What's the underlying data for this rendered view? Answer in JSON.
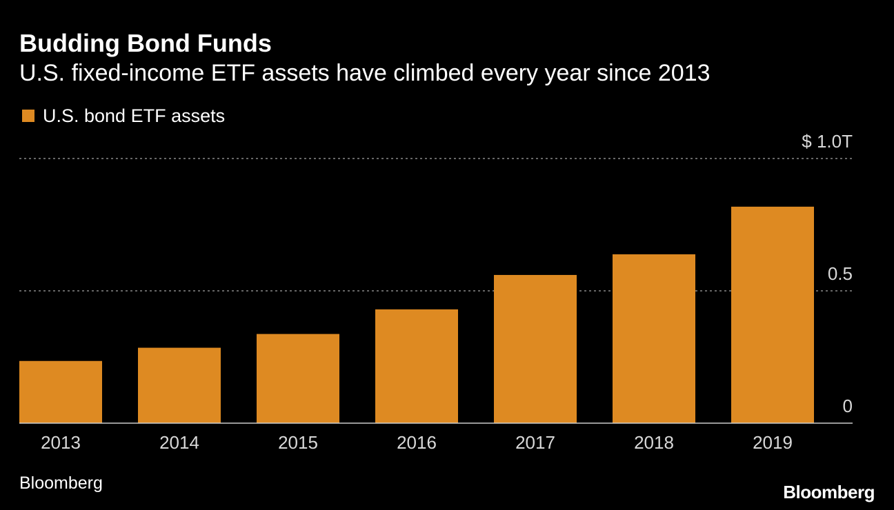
{
  "title": "Budding Bond Funds",
  "subtitle": "U.S. fixed-income ETF assets have climbed every year since 2013",
  "source": "Bloomberg",
  "brand": "Bloomberg",
  "colors": {
    "background": "#000000",
    "bar": "#de8a22",
    "text": "#ffffff",
    "tick_text": "#d8d8d8",
    "gridline": "#8a8a8a",
    "axis": "#cccccc"
  },
  "chart_data": {
    "type": "bar",
    "title": "Budding Bond Funds",
    "subtitle": "U.S. fixed-income ETF assets have climbed every year since 2013",
    "xlabel": "",
    "ylabel": "",
    "categories": [
      "2013",
      "2014",
      "2015",
      "2016",
      "2017",
      "2018",
      "2019"
    ],
    "series": [
      {
        "name": "U.S. bond ETF assets",
        "values": [
          0.235,
          0.285,
          0.337,
          0.43,
          0.56,
          0.638,
          0.818
        ]
      }
    ],
    "ylim": [
      0,
      1.0
    ],
    "yticks": [
      0,
      0.5,
      1.0
    ],
    "ytick_labels": [
      "0",
      "0.5",
      "$ 1.0T"
    ],
    "grid": true,
    "legend_position": "top-left",
    "y_axis_position": "right"
  }
}
